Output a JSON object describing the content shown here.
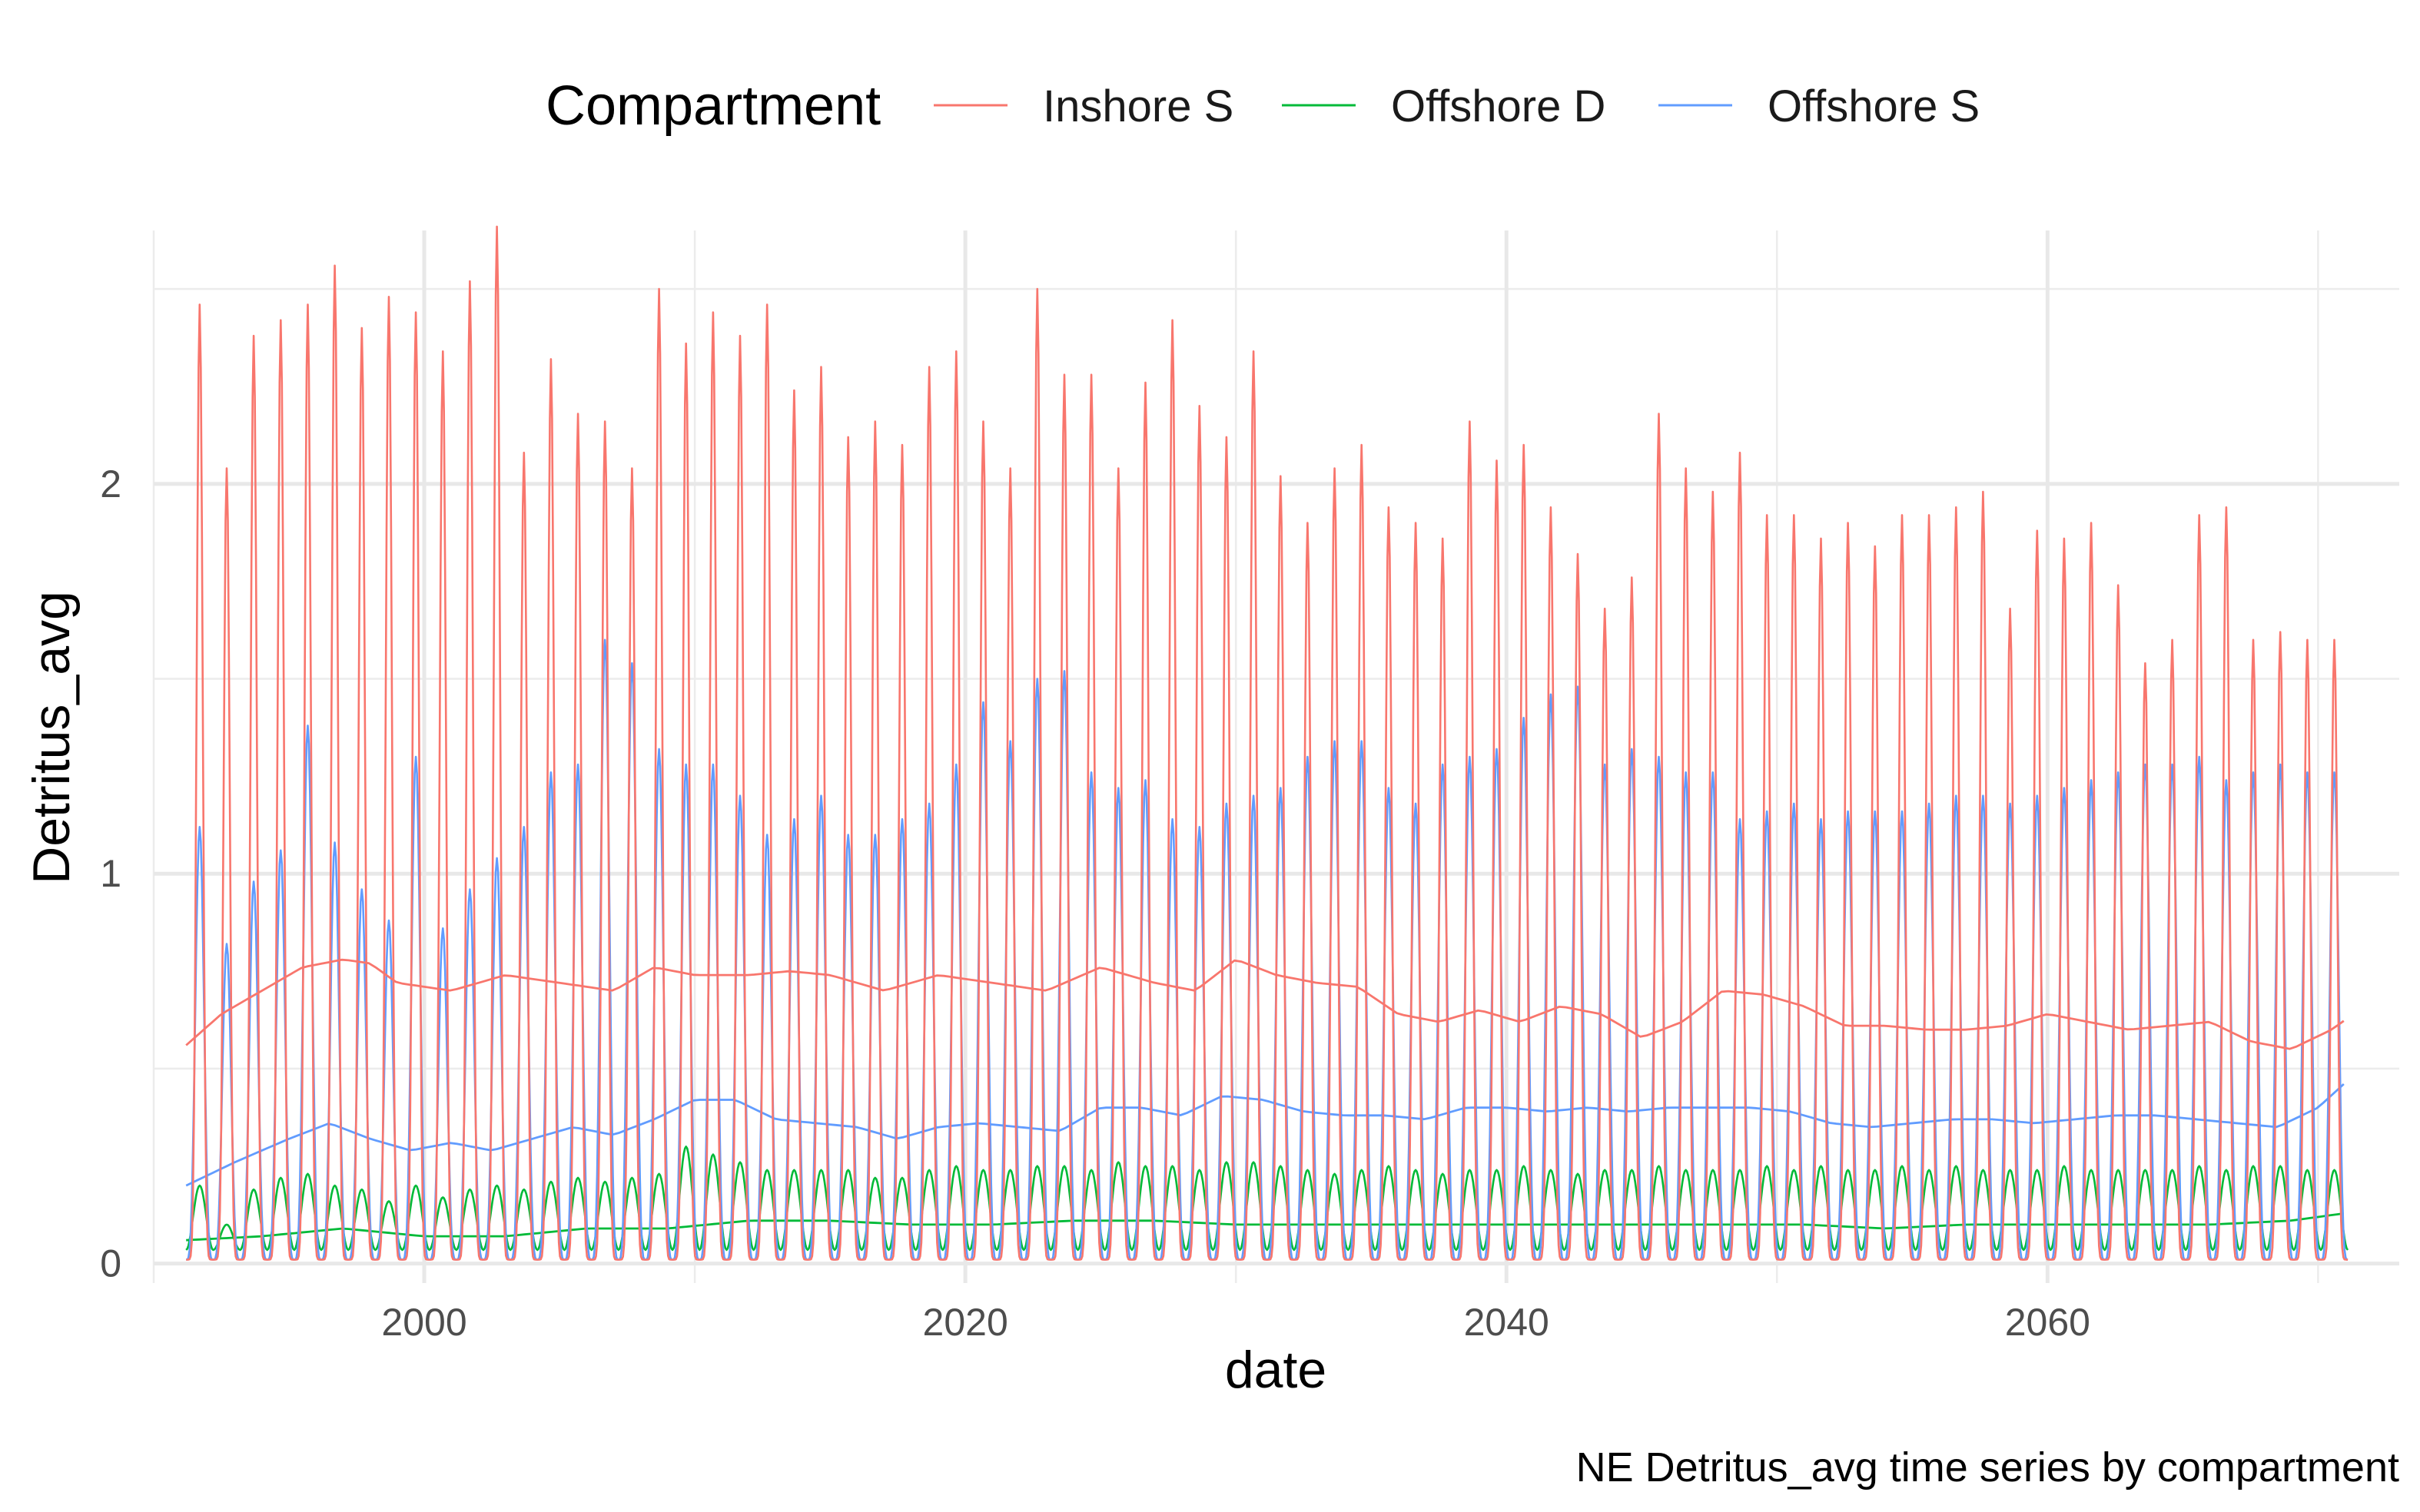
{
  "chart_data": {
    "type": "line",
    "title": "",
    "caption": "NE Detritus_avg time series by compartment",
    "xlabel": "date",
    "ylabel": "Detritus_avg",
    "xlim": [
      1990,
      2073
    ],
    "ylim": [
      -0.05,
      2.65
    ],
    "xticks": [
      2000,
      2020,
      2040,
      2060
    ],
    "xtick_labels": [
      "2000",
      "2020",
      "2040",
      "2060"
    ],
    "yticks": [
      0,
      1,
      2
    ],
    "ytick_labels": [
      "0",
      "1",
      "2"
    ],
    "grid": true,
    "legend": {
      "title": "Compartment",
      "position": "top",
      "entries": [
        "Inshore S",
        "Offshore D",
        "Offshore S"
      ]
    },
    "x_start": 1991.2,
    "x_end": 2071.1,
    "series": [
      {
        "name": "Inshore S",
        "color": "#F8766D",
        "seasonal_peaks": [
          2.46,
          2.04,
          2.38,
          2.42,
          2.46,
          2.56,
          2.4,
          2.48,
          2.44,
          2.34,
          2.52,
          2.66,
          2.08,
          2.32,
          2.18,
          2.16,
          2.04,
          2.5,
          2.36,
          2.44,
          2.38,
          2.46,
          2.24,
          2.3,
          2.12,
          2.16,
          2.1,
          2.3,
          2.34,
          2.16,
          2.04,
          2.5,
          2.28,
          2.28,
          2.04,
          2.26,
          2.42,
          2.2,
          2.12,
          2.34,
          2.02,
          1.9,
          2.04,
          2.1,
          1.94,
          1.9,
          1.86,
          2.16,
          2.06,
          2.1,
          1.94,
          1.82,
          1.68,
          1.76,
          2.18,
          2.04,
          1.98,
          2.08,
          1.92,
          1.92,
          1.86,
          1.9,
          1.84,
          1.92,
          1.92,
          1.94,
          1.98,
          1.68,
          1.88,
          1.86,
          1.9,
          1.74,
          1.54,
          1.6,
          1.92,
          1.94,
          1.6,
          1.62,
          1.6,
          1.6
        ],
        "trend": {
          "x": [
            1991.2,
            1992.5,
            1994,
            1995.5,
            1997,
            1998,
            1999,
            2001,
            2003,
            2005,
            2007,
            2008.5,
            2010,
            2012,
            2013.5,
            2015,
            2017,
            2019,
            2021,
            2023,
            2025,
            2027,
            2028.5,
            2030,
            2031.5,
            2033,
            2034.5,
            2036,
            2037.5,
            2039,
            2040.5,
            2042,
            2043.5,
            2045,
            2046.5,
            2048,
            2049.5,
            2051,
            2052.5,
            2054,
            2055.5,
            2057,
            2058.5,
            2060,
            2061.5,
            2063,
            2064.5,
            2066,
            2067.5,
            2069,
            2070.5,
            2071.1
          ],
          "y": [
            0.56,
            0.64,
            0.7,
            0.76,
            0.78,
            0.77,
            0.72,
            0.7,
            0.74,
            0.72,
            0.7,
            0.76,
            0.74,
            0.74,
            0.75,
            0.74,
            0.7,
            0.74,
            0.72,
            0.7,
            0.76,
            0.72,
            0.7,
            0.78,
            0.74,
            0.72,
            0.71,
            0.64,
            0.62,
            0.65,
            0.62,
            0.66,
            0.64,
            0.58,
            0.62,
            0.7,
            0.69,
            0.66,
            0.61,
            0.61,
            0.6,
            0.6,
            0.61,
            0.64,
            0.62,
            0.6,
            0.61,
            0.62,
            0.57,
            0.55,
            0.6,
            0.63
          ]
        }
      },
      {
        "name": "Offshore D",
        "color": "#00BA38",
        "seasonal_peaks": [
          0.2,
          0.1,
          0.19,
          0.22,
          0.23,
          0.2,
          0.19,
          0.16,
          0.2,
          0.17,
          0.19,
          0.2,
          0.19,
          0.21,
          0.22,
          0.21,
          0.22,
          0.23,
          0.3,
          0.28,
          0.26,
          0.24,
          0.24,
          0.24,
          0.24,
          0.22,
          0.22,
          0.24,
          0.25,
          0.24,
          0.24,
          0.25,
          0.25,
          0.24,
          0.26,
          0.25,
          0.25,
          0.24,
          0.26,
          0.26,
          0.25,
          0.24,
          0.23,
          0.24,
          0.25,
          0.24,
          0.23,
          0.24,
          0.24,
          0.25,
          0.24,
          0.23,
          0.24,
          0.24,
          0.25,
          0.24,
          0.24,
          0.24,
          0.25,
          0.24,
          0.25,
          0.24,
          0.24,
          0.25,
          0.24,
          0.25,
          0.24,
          0.24,
          0.24,
          0.25,
          0.24,
          0.24,
          0.24,
          0.24,
          0.25,
          0.24,
          0.25,
          0.25,
          0.24,
          0.24
        ],
        "trend": {
          "x": [
            1991.2,
            1994,
            1997,
            2000,
            2003,
            2006,
            2009,
            2012,
            2015,
            2018,
            2021,
            2024,
            2027,
            2030,
            2033,
            2036,
            2039,
            2042,
            2045,
            2048,
            2051,
            2054,
            2057,
            2060,
            2063,
            2066,
            2069,
            2071.1
          ],
          "y": [
            0.06,
            0.07,
            0.09,
            0.07,
            0.07,
            0.09,
            0.09,
            0.11,
            0.11,
            0.1,
            0.1,
            0.11,
            0.11,
            0.1,
            0.1,
            0.1,
            0.1,
            0.1,
            0.1,
            0.1,
            0.1,
            0.09,
            0.1,
            0.1,
            0.1,
            0.1,
            0.11,
            0.13
          ]
        }
      },
      {
        "name": "Offshore S",
        "color": "#619CFF",
        "seasonal_peaks": [
          1.12,
          0.82,
          0.98,
          1.06,
          1.38,
          1.08,
          0.96,
          0.88,
          1.3,
          0.86,
          0.96,
          1.04,
          1.12,
          1.26,
          1.28,
          1.6,
          1.54,
          1.32,
          1.28,
          1.28,
          1.2,
          1.1,
          1.14,
          1.2,
          1.1,
          1.1,
          1.14,
          1.18,
          1.28,
          1.44,
          1.34,
          1.5,
          1.52,
          1.26,
          1.22,
          1.24,
          1.14,
          1.12,
          1.18,
          1.2,
          1.22,
          1.3,
          1.34,
          1.34,
          1.22,
          1.18,
          1.28,
          1.3,
          1.32,
          1.4,
          1.46,
          1.48,
          1.28,
          1.32,
          1.3,
          1.26,
          1.26,
          1.14,
          1.16,
          1.18,
          1.14,
          1.16,
          1.16,
          1.16,
          1.18,
          1.2,
          1.2,
          1.18,
          1.2,
          1.22,
          1.24,
          1.26,
          1.28,
          1.28,
          1.3,
          1.24,
          1.26,
          1.28,
          1.26,
          1.26
        ],
        "trend": {
          "x": [
            1991.2,
            1993,
            1995,
            1996.5,
            1998,
            1999.5,
            2001,
            2002.5,
            2004,
            2005.5,
            2007,
            2008.5,
            2010,
            2011.5,
            2013,
            2014.5,
            2016,
            2017.5,
            2019,
            2020.5,
            2022,
            2023.5,
            2025,
            2026.5,
            2028,
            2029.5,
            2031,
            2032.5,
            2034,
            2035.5,
            2037,
            2038.5,
            2040,
            2041.5,
            2043,
            2044.5,
            2046,
            2047.5,
            2049,
            2050.5,
            2052,
            2053.5,
            2055,
            2056.5,
            2058,
            2059.5,
            2061,
            2062.5,
            2064,
            2065.5,
            2067,
            2068.5,
            2070,
            2071.1
          ],
          "y": [
            0.2,
            0.26,
            0.32,
            0.36,
            0.32,
            0.29,
            0.31,
            0.29,
            0.32,
            0.35,
            0.33,
            0.37,
            0.42,
            0.42,
            0.37,
            0.36,
            0.35,
            0.32,
            0.35,
            0.36,
            0.35,
            0.34,
            0.4,
            0.4,
            0.38,
            0.43,
            0.42,
            0.39,
            0.38,
            0.38,
            0.37,
            0.4,
            0.4,
            0.39,
            0.4,
            0.39,
            0.4,
            0.4,
            0.4,
            0.39,
            0.36,
            0.35,
            0.36,
            0.37,
            0.37,
            0.36,
            0.37,
            0.38,
            0.38,
            0.37,
            0.36,
            0.35,
            0.4,
            0.47
          ]
        }
      }
    ]
  }
}
